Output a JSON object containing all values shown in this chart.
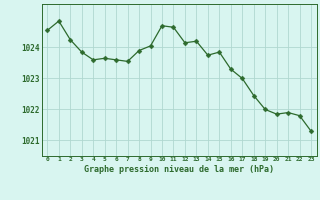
{
  "x": [
    0,
    1,
    2,
    3,
    4,
    5,
    6,
    7,
    8,
    9,
    10,
    11,
    12,
    13,
    14,
    15,
    16,
    17,
    18,
    19,
    20,
    21,
    22,
    23
  ],
  "y": [
    1024.55,
    1024.85,
    1024.25,
    1023.85,
    1023.6,
    1023.65,
    1023.6,
    1023.55,
    1023.9,
    1024.05,
    1024.7,
    1024.65,
    1024.15,
    1024.2,
    1023.75,
    1023.85,
    1023.3,
    1023.0,
    1022.45,
    1022.0,
    1021.85,
    1021.9,
    1021.8,
    1021.3
  ],
  "line_color": "#2d6a2d",
  "marker": "D",
  "marker_size": 2.5,
  "bg_color": "#d8f5f0",
  "grid_color": "#b0d8d0",
  "axes_color": "#2d6a2d",
  "xlabel": "Graphe pression niveau de la mer (hPa)",
  "ylim": [
    1020.5,
    1025.4
  ],
  "yticks": [
    1021,
    1022,
    1023,
    1024
  ],
  "xtick_labels": [
    "0",
    "1",
    "2",
    "3",
    "4",
    "5",
    "6",
    "7",
    "8",
    "9",
    "10",
    "11",
    "12",
    "13",
    "14",
    "15",
    "16",
    "17",
    "18",
    "19",
    "20",
    "21",
    "22",
    "23"
  ]
}
